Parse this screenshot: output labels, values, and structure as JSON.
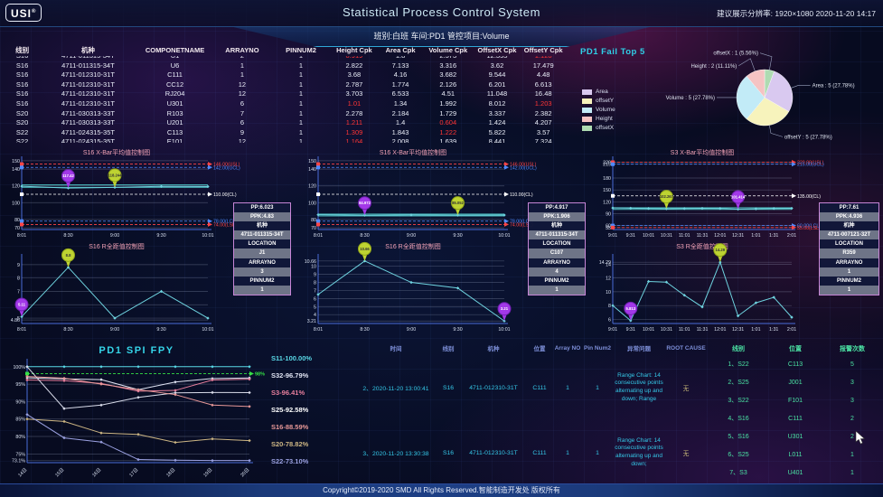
{
  "header": {
    "logo": "USI",
    "logo_reg": "®",
    "title": "Statistical Process Control System",
    "right_info": "建议展示分辨率: 1920×1080   2020-11-20 14:17",
    "sub_banner": "班别:白班 车间:PD1 管控项目:Volume"
  },
  "section_titles": {
    "pie": "PD1  Fail Top 5",
    "fpy": "PD1  SPI FPY"
  },
  "cpk_table": {
    "headers": [
      "线别",
      "机种",
      "COMPONETNAME",
      "ARRAYNO",
      "PINNUM2",
      "Height Cpk",
      "Area Cpk",
      "Volume Cpk",
      "OffsetX Cpk",
      "OffsetY Cpk"
    ],
    "rows": [
      {
        "cells": [
          "S16",
          "4711-011315-34T",
          "U1",
          "2",
          "1",
          "0.919",
          "1.8",
          "2.573",
          "12.355",
          "1.128"
        ],
        "red": [
          5,
          9
        ]
      },
      {
        "cells": [
          "S16",
          "4711-011315-34T",
          "U6",
          "1",
          "1",
          "2.822",
          "7.133",
          "3.316",
          "3.62",
          "17.479"
        ],
        "red": []
      },
      {
        "cells": [
          "S16",
          "4711-012310-31T",
          "C111",
          "1",
          "1",
          "3.68",
          "4.16",
          "3.682",
          "9.544",
          "4.48"
        ],
        "red": []
      },
      {
        "cells": [
          "S16",
          "4711-012310-31T",
          "CC12",
          "12",
          "1",
          "2.787",
          "1.774",
          "2.126",
          "6.201",
          "6.613"
        ],
        "red": []
      },
      {
        "cells": [
          "S16",
          "4711-012310-31T",
          "RJ204",
          "12",
          "1",
          "3.703",
          "6.533",
          "4.51",
          "11.048",
          "16.48"
        ],
        "red": []
      },
      {
        "cells": [
          "S16",
          "4711-012310-31T",
          "U301",
          "6",
          "1",
          "1.01",
          "1.34",
          "1.992",
          "8.012",
          "1.203"
        ],
        "red": [
          5,
          9
        ]
      },
      {
        "cells": [
          "S20",
          "4711-030313-33T",
          "R103",
          "7",
          "1",
          "2.278",
          "2.184",
          "1.729",
          "3.337",
          "2.382"
        ],
        "red": []
      },
      {
        "cells": [
          "S20",
          "4711-030313-33T",
          "U201",
          "6",
          "1",
          "1.211",
          "1.4",
          "0.604",
          "1.424",
          "4.207"
        ],
        "red": [
          5,
          7
        ]
      },
      {
        "cells": [
          "S22",
          "4711-024315-35T",
          "C113",
          "9",
          "1",
          "1.309",
          "1.843",
          "1.222",
          "5.822",
          "3.57"
        ],
        "red": [
          5,
          7
        ]
      },
      {
        "cells": [
          "S22",
          "4711-024315-35T",
          "E101",
          "12",
          "1",
          "1.164",
          "2.008",
          "1.639",
          "8.441",
          "7.324"
        ],
        "red": [
          5
        ]
      }
    ]
  },
  "info_panels": [
    {
      "rows": [
        "PP:6.023",
        "PPK:4.83",
        "机种",
        "4711-011315-34T",
        "LOCATION",
        "J1",
        "ARRAYNO",
        "3",
        "PINNUM2",
        "1"
      ]
    },
    {
      "rows": [
        "PP:4.917",
        "PPK:1.906",
        "机种",
        "4711-011315-34T",
        "LOCATION",
        "C107",
        "ARRAYNO",
        "4",
        "PINNUM2",
        "1"
      ]
    },
    {
      "rows": [
        "PP:7.61",
        "PPK:4.936",
        "机种",
        "4711-007121-32T",
        "LOCATION",
        "R359",
        "ARRAYNO",
        "1",
        "PINNUM2",
        "1"
      ]
    }
  ],
  "fpy_legend": [
    {
      "label": "S11-100.00%",
      "color": "#59d8e6"
    },
    {
      "label": "S32-96.79%",
      "color": "#dfe3f2"
    },
    {
      "label": "S3-96.41%",
      "color": "#e87f9d"
    },
    {
      "label": "S25-92.58%",
      "color": "#ffffff"
    },
    {
      "label": "S16-88.59%",
      "color": "#e89898"
    },
    {
      "label": "S20-78.82%",
      "color": "#cdb684"
    },
    {
      "label": "S22-73.10%",
      "color": "#9aa0e0"
    }
  ],
  "alarm_table": {
    "headers": [
      "时间",
      "线别",
      "机种",
      "位置",
      "Array NO",
      "Pin Num2",
      "异常问题",
      "ROOT CAUSE"
    ],
    "rows": [
      {
        "time": "2、2020-11-20 13:00:41",
        "line": "S16",
        "model": "4711-012310-31T",
        "loc": "C111",
        "array": "1",
        "pin": "1",
        "issue": "Range Chart: 14 consecutive points alternating up and down; Range",
        "cause": "无",
        "h": 74
      },
      {
        "time": "3、2020-11-20 13:30:38",
        "line": "S16",
        "model": "4711-012310-31T",
        "loc": "C111",
        "array": "1",
        "pin": "1",
        "issue": "Range Chart: 14 consecutive points alternating up and down;",
        "cause": "无",
        "h": 70
      },
      {
        "time": "4、2020-11-20 14:01:01",
        "line": "S22",
        "model": "4711-024315-35T",
        "loc": "C113",
        "array": "9",
        "pin": "1",
        "issue": "Out of LCL",
        "cause": "无",
        "h": 40
      }
    ]
  },
  "alert_table": {
    "headers": [
      "线别",
      "位置",
      "报警次数"
    ],
    "rows": [
      [
        "1、S22",
        "C113",
        "5"
      ],
      [
        "2、S25",
        "J001",
        "3"
      ],
      [
        "3、S22",
        "F101",
        "3"
      ],
      [
        "4、S16",
        "C111",
        "2"
      ],
      [
        "5、S16",
        "U301",
        "2"
      ],
      [
        "6、S25",
        "L011",
        "1"
      ],
      [
        "7、S3",
        "U401",
        "1"
      ],
      [
        "8、S3",
        "R359",
        "1"
      ]
    ]
  },
  "footer": {
    "text": "Copyright©2019-2020 SMD All Rights Reserved.智能制造开发处 版权所有"
  },
  "chart_data": [
    {
      "el": "xbar1",
      "type": "line",
      "title": "S16 X-Bar平均值控制图",
      "ymin": 68,
      "ymax": 152,
      "yticks": [
        {
          "v": 150,
          "l": "150"
        },
        {
          "v": 140,
          "l": "140"
        },
        {
          "v": 120,
          "l": "120"
        },
        {
          "v": 100,
          "l": "100"
        },
        {
          "v": 80,
          "l": "80"
        },
        {
          "v": 70,
          "l": "70"
        }
      ],
      "xlabels": [
        "8:01",
        "8:30",
        "9:00",
        "9:30",
        "10:01"
      ],
      "limits": [
        {
          "v": 146,
          "l": "146.00(USL)",
          "c": "#ff4545"
        },
        {
          "v": 142,
          "l": "142.00(UCL)",
          "c": "#4f8aff"
        },
        {
          "v": 110,
          "l": "110.00(CL)",
          "c": "#ffffff"
        },
        {
          "v": 78,
          "l": "78.00(LCL)",
          "c": "#4f8aff"
        },
        {
          "v": 74,
          "l": "74.00(LSL)",
          "c": "#ff4545"
        }
      ],
      "band": [
        118.2,
        121.2
      ],
      "series": [
        {
          "name": "mean",
          "color": "#6fd4e0",
          "points": [
            119.6,
            117.42,
            118.244,
            119.4,
            119.2
          ],
          "dots": true
        }
      ],
      "balloons": [
        {
          "i": 1,
          "l": "117.42",
          "c": "purple"
        },
        {
          "i": 2,
          "l": "118.244",
          "c": "green"
        }
      ],
      "pad": {
        "l": 20,
        "r": 102,
        "t": 14,
        "b": 12
      }
    },
    {
      "el": "xbar2",
      "type": "line",
      "title": "S16 X-Bar平均值控制图",
      "ymin": 68,
      "ymax": 152,
      "yticks": [
        {
          "v": 150,
          "l": "150"
        },
        {
          "v": 140,
          "l": "140"
        },
        {
          "v": 120,
          "l": "120"
        },
        {
          "v": 100,
          "l": "100"
        },
        {
          "v": 80,
          "l": "80"
        },
        {
          "v": 70,
          "l": "70"
        }
      ],
      "xlabels": [
        "8:01",
        "8:30",
        "9:00",
        "9:30",
        "10:01"
      ],
      "limits": [
        {
          "v": 146,
          "l": "146.00(USL)",
          "c": "#ff4545"
        },
        {
          "v": 142,
          "l": "142.00(UCL)",
          "c": "#4f8aff"
        },
        {
          "v": 110,
          "l": "110.00(CL)",
          "c": "#ffffff"
        },
        {
          "v": 78,
          "l": "78.00(LCL)",
          "c": "#4f8aff"
        },
        {
          "v": 74,
          "l": "74.00(LSL)",
          "c": "#ff4545"
        }
      ],
      "band": [
        84.2,
        86.4
      ],
      "series": [
        {
          "name": "mean",
          "color": "#6fd4e0",
          "points": [
            85.6,
            84.972,
            85.3,
            85.052,
            85.2
          ],
          "dots": true
        }
      ],
      "balloons": [
        {
          "i": 1,
          "l": "84.972",
          "c": "purple"
        },
        {
          "i": 3,
          "l": "85.052",
          "c": "green"
        }
      ],
      "pad": {
        "l": 20,
        "r": 102,
        "t": 14,
        "b": 12
      }
    },
    {
      "el": "xbar3",
      "type": "line",
      "title": "S3 X-Bar平均值控制图",
      "ymin": 50,
      "ymax": 228,
      "yticks": [
        {
          "v": 220,
          "l": "220"
        },
        {
          "v": 215,
          "l": "215"
        },
        {
          "v": 180,
          "l": "180"
        },
        {
          "v": 150,
          "l": "150"
        },
        {
          "v": 120,
          "l": "120"
        },
        {
          "v": 90,
          "l": "90"
        },
        {
          "v": 60,
          "l": "60"
        },
        {
          "v": 55,
          "l": "55"
        }
      ],
      "xlabels": [
        "9:01",
        "9:31",
        "10:01",
        "10:31",
        "11:01",
        "11:31",
        "12:01",
        "12:31",
        "1:01",
        "1:31",
        "2:01"
      ],
      "limits": [
        {
          "v": 220,
          "l": "220.00(USL)",
          "c": "#ff4545"
        },
        {
          "v": 215,
          "l": "215.00(UCL)",
          "c": "#4f8aff"
        },
        {
          "v": 135,
          "l": "135.00(CL)",
          "c": "#ffffff"
        },
        {
          "v": 60,
          "l": "60.00(LCL)",
          "c": "#4f8aff"
        },
        {
          "v": 55,
          "l": "55.00(LSL)",
          "c": "#ff4545"
        }
      ],
      "band": [
        101,
        105
      ],
      "series": [
        {
          "name": "mean",
          "color": "#6fd4e0",
          "points": [
            104.5,
            103.8,
            103.2,
            102.267,
            103.0,
            103.6,
            103.2,
            101.414,
            102.2,
            103.1,
            103.6
          ],
          "dots": true
        }
      ],
      "balloons": [
        {
          "i": 3,
          "l": "102.267",
          "c": "green"
        },
        {
          "i": 7,
          "l": "101.414",
          "c": "purple"
        }
      ],
      "pad": {
        "l": 20,
        "r": 98,
        "t": 14,
        "b": 12
      }
    },
    {
      "el": "r1",
      "type": "line",
      "title": "S16 R全距值控制图",
      "ymin": 4.6,
      "ymax": 9.6,
      "yticks": [
        {
          "v": 9,
          "l": "9"
        },
        {
          "v": 8,
          "l": "8"
        },
        {
          "v": 7,
          "l": "7"
        },
        {
          "v": 6,
          "l": "6"
        },
        {
          "v": 5,
          "l": "5"
        },
        {
          "v": 4.86,
          "l": "4.86"
        }
      ],
      "xlabels": [
        "8:01",
        "8:30",
        "9:00",
        "9:30",
        "10:01"
      ],
      "series": [
        {
          "name": "range",
          "color": "#6fd4e0",
          "points": [
            5.11,
            8.8,
            5.0,
            7.0,
            5.0
          ],
          "dots": true
        }
      ],
      "balloons": [
        {
          "i": 0,
          "l": "5.11",
          "c": "purple"
        },
        {
          "i": 1,
          "l": "8.8",
          "c": "green"
        }
      ],
      "pad": {
        "l": 20,
        "r": 102,
        "t": 18,
        "b": 16
      }
    },
    {
      "el": "r2",
      "type": "line",
      "title": "S16 R全距值控制图",
      "ymin": 2.9,
      "ymax": 11.2,
      "yticks": [
        {
          "v": 10.66,
          "l": "10.66"
        },
        {
          "v": 10,
          "l": "10"
        },
        {
          "v": 9,
          "l": "9"
        },
        {
          "v": 8,
          "l": "8"
        },
        {
          "v": 7,
          "l": "7"
        },
        {
          "v": 6,
          "l": "6"
        },
        {
          "v": 5,
          "l": "5"
        },
        {
          "v": 4,
          "l": "4"
        },
        {
          "v": 3.21,
          "l": "3.21"
        }
      ],
      "xlabels": [
        "8:01",
        "8:30",
        "9:00",
        "9:30",
        "10:01"
      ],
      "series": [
        {
          "name": "range",
          "color": "#6fd4e0",
          "points": [
            6.5,
            10.66,
            8.0,
            7.3,
            3.21
          ],
          "dots": true
        }
      ],
      "balloons": [
        {
          "i": 1,
          "l": "10.66",
          "c": "green"
        },
        {
          "i": 4,
          "l": "3.21",
          "c": "purple"
        }
      ],
      "pad": {
        "l": 20,
        "r": 102,
        "t": 18,
        "b": 16
      }
    },
    {
      "el": "r3",
      "type": "line",
      "title": "S3 R全距值控制图",
      "ymin": 5.4,
      "ymax": 15.1,
      "yticks": [
        {
          "v": 14.29,
          "l": "14.29"
        },
        {
          "v": 14,
          "l": "14"
        },
        {
          "v": 12,
          "l": "12"
        },
        {
          "v": 10,
          "l": "10"
        },
        {
          "v": 8,
          "l": "8"
        },
        {
          "v": 6,
          "l": "6"
        }
      ],
      "xlabels": [
        "9:01",
        "9:31",
        "10:01",
        "10:31",
        "11:01",
        "11:31",
        "12:01",
        "12:31",
        "1:01",
        "1:31",
        "2:01"
      ],
      "series": [
        {
          "name": "range",
          "color": "#6fd4e0",
          "points": [
            8.0,
            5.813,
            11.5,
            11.4,
            9.5,
            7.8,
            14.29,
            6.5,
            8.4,
            9.2,
            6.3
          ],
          "dots": true
        }
      ],
      "balloons": [
        {
          "i": 1,
          "l": "5.813",
          "c": "purple"
        },
        {
          "i": 6,
          "l": "14.29",
          "c": "green"
        }
      ],
      "pad": {
        "l": 20,
        "r": 98,
        "t": 18,
        "b": 16
      }
    },
    {
      "el": "fpy",
      "type": "line",
      "title": "",
      "ymin": 72.5,
      "ymax": 101.5,
      "rotx": true,
      "yticks": [
        {
          "v": 100,
          "l": "100%"
        },
        {
          "v": 95,
          "l": "95%"
        },
        {
          "v": 90,
          "l": "90%"
        },
        {
          "v": 85,
          "l": "85%"
        },
        {
          "v": 80,
          "l": "80%"
        },
        {
          "v": 75,
          "l": "75%"
        },
        {
          "v": 73.1,
          "l": "73.1%"
        }
      ],
      "xlabels": [
        "14日",
        "15日",
        "16日",
        "17日",
        "18日",
        "19日",
        "20日"
      ],
      "target": {
        "v": 98,
        "l": "98%",
        "c": "#35e045"
      },
      "series": [
        {
          "name": "S11",
          "color": "#59d8e6",
          "points": [
            100,
            100,
            100,
            100,
            100,
            100,
            100
          ],
          "dots": true
        },
        {
          "name": "S32",
          "color": "#dfe3f2",
          "points": [
            96.8,
            96.5,
            96.3,
            93.4,
            95.6,
            96.6,
            96.79
          ],
          "dots": true
        },
        {
          "name": "S3",
          "color": "#e87f9d",
          "points": [
            96.2,
            96.0,
            95.2,
            93.0,
            93.2,
            96.2,
            96.41
          ],
          "dots": true
        },
        {
          "name": "S25",
          "color": "#d9dcea",
          "points": [
            100,
            88.0,
            89.0,
            91.2,
            92.5,
            92.6,
            92.58
          ],
          "dots": true
        },
        {
          "name": "S16",
          "color": "#e89898",
          "points": [
            97.2,
            96.7,
            95.0,
            93.4,
            92.0,
            89.0,
            88.59
          ],
          "dots": true
        },
        {
          "name": "S20",
          "color": "#cdb684",
          "points": [
            85.0,
            84.3,
            81.0,
            80.6,
            78.3,
            79.3,
            78.82
          ],
          "dots": true
        },
        {
          "name": "S22",
          "color": "#9aa0e0",
          "points": [
            86.3,
            79.6,
            78.4,
            73.4,
            73.2,
            73.1,
            73.1
          ],
          "dots": true
        }
      ],
      "pad": {
        "l": 26,
        "r": 22,
        "t": 18,
        "b": 24
      }
    },
    {
      "el": "pieSvg",
      "type": "pie",
      "title": "PD1  Fail Top 5",
      "cx": 214,
      "cy": 60,
      "r": 31,
      "slices": [
        {
          "name": "offsetX",
          "count": 1,
          "pct": 5.56,
          "label": "offsetX : 1 (5.56%)",
          "color": "#aedbb2",
          "side": "left",
          "ldy": -4
        },
        {
          "name": "Area",
          "count": 5,
          "pct": 27.78,
          "label": "Area : 5 (27.78%)",
          "color": "#d9c9f0",
          "side": "right",
          "ldy": 0
        },
        {
          "name": "offsetY",
          "count": 5,
          "pct": 27.78,
          "label": "offsetY : 5 (27.78%)",
          "color": "#f7f3bc",
          "side": "right",
          "ldy": 4
        },
        {
          "name": "Volume",
          "count": 5,
          "pct": 27.78,
          "label": "Volume : 5 (27.78%)",
          "color": "#c2ebf7",
          "side": "left",
          "ldy": 0
        },
        {
          "name": "Height",
          "count": 2,
          "pct": 11.11,
          "label": "Height : 2 (11.11%)",
          "color": "#f5c3c3",
          "side": "left",
          "ldy": 8
        }
      ],
      "legend": [
        {
          "label": "Area",
          "color": "#d9c9f0"
        },
        {
          "label": "offsetY",
          "color": "#f7f3bc"
        },
        {
          "label": "Volume",
          "color": "#c2ebf7"
        },
        {
          "label": "Height",
          "color": "#f5c3c3"
        },
        {
          "label": "offsetX",
          "color": "#aedbb2"
        }
      ]
    }
  ]
}
